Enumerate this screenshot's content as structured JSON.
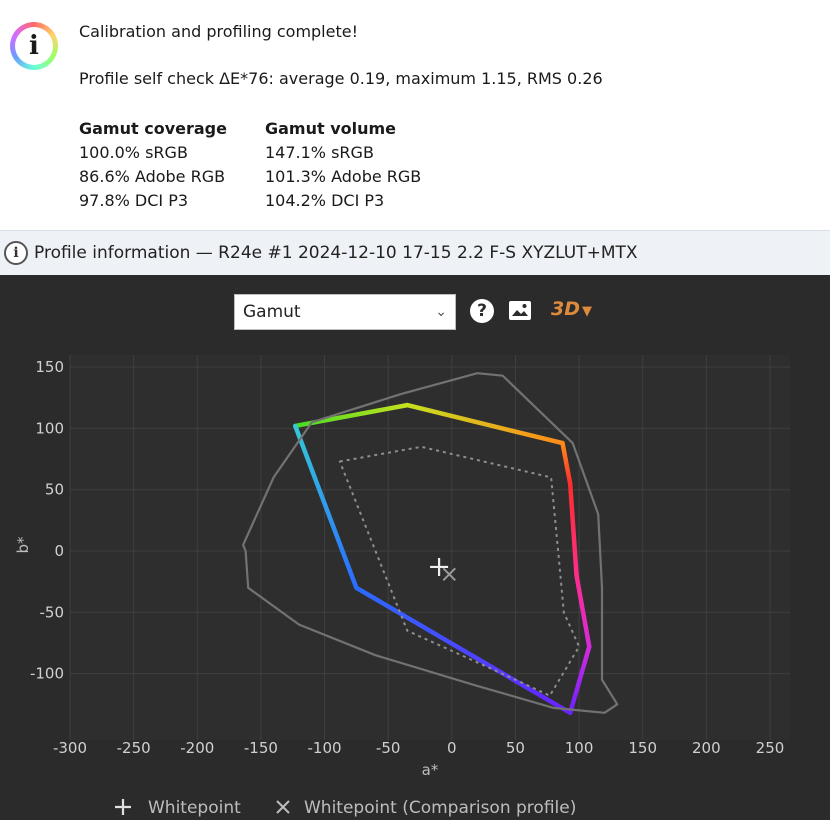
{
  "dialog": {
    "title": "Calibration and profiling complete!",
    "self_check": "Profile self check ΔE*76: average 0.19, maximum 1.15, RMS 0.26",
    "coverage_header": "Gamut coverage",
    "coverage": [
      "100.0% sRGB",
      "86.6% Adobe RGB",
      "97.8% DCI P3"
    ],
    "volume_header": "Gamut volume",
    "volume": [
      "147.1% sRGB",
      "101.3% Adobe RGB",
      "104.2% DCI P3"
    ]
  },
  "window": {
    "title": "Profile information — R24e #1 2024-12-10 17-15 2.2 F-S XYZLUT+MTX"
  },
  "toolbar": {
    "view_select": "Gamut",
    "help_icon": "question-circle-icon",
    "image_icon": "image-icon",
    "three_d_label": "3D",
    "accent": "#e08a3c"
  },
  "chart_data": {
    "type": "scatter",
    "xlabel": "a*",
    "ylabel": "b*",
    "xlim": [
      -300,
      260
    ],
    "ylim": [
      -145,
      160
    ],
    "x_ticks": [
      -300,
      -250,
      -200,
      -150,
      -100,
      -50,
      0,
      50,
      100,
      150,
      200,
      250
    ],
    "y_ticks": [
      150,
      100,
      50,
      0,
      -50,
      -100
    ],
    "grid": true,
    "series": [
      {
        "name": "",
        "style": "colored-line",
        "points": [
          [
            -123,
            102
          ],
          [
            -35,
            119
          ],
          [
            87,
            88
          ],
          [
            93,
            55
          ],
          [
            98,
            -20
          ],
          [
            108,
            -78
          ],
          [
            93,
            -132
          ],
          [
            -75,
            -30
          ],
          [
            -123,
            102
          ]
        ]
      },
      {
        "name": "",
        "style": "solid-gray",
        "points": [
          [
            -164,
            5
          ],
          [
            -140,
            60
          ],
          [
            -110,
            105
          ],
          [
            -40,
            128
          ],
          [
            20,
            145
          ],
          [
            40,
            143
          ],
          [
            95,
            88
          ],
          [
            115,
            30
          ],
          [
            118,
            -30
          ],
          [
            118,
            -105
          ],
          [
            130,
            -125
          ],
          [
            120,
            -132
          ],
          [
            80,
            -128
          ],
          [
            20,
            -110
          ],
          [
            -60,
            -85
          ],
          [
            -120,
            -60
          ],
          [
            -160,
            -30
          ],
          [
            -162,
            0
          ]
        ]
      },
      {
        "name": "",
        "style": "dotted-gray",
        "points": [
          [
            -88,
            73
          ],
          [
            -24,
            85
          ],
          [
            78,
            60
          ],
          [
            84,
            -5
          ],
          [
            88,
            -50
          ],
          [
            100,
            -78
          ],
          [
            77,
            -118
          ],
          [
            50,
            -105
          ],
          [
            -35,
            -65
          ],
          [
            -88,
            73
          ]
        ]
      }
    ],
    "markers": [
      {
        "label": "Whitepoint",
        "symbol": "+",
        "x": -10,
        "y": -13
      },
      {
        "label": "Whitepoint (Comparison profile)",
        "symbol": "x",
        "x": -2,
        "y": -19
      }
    ]
  }
}
